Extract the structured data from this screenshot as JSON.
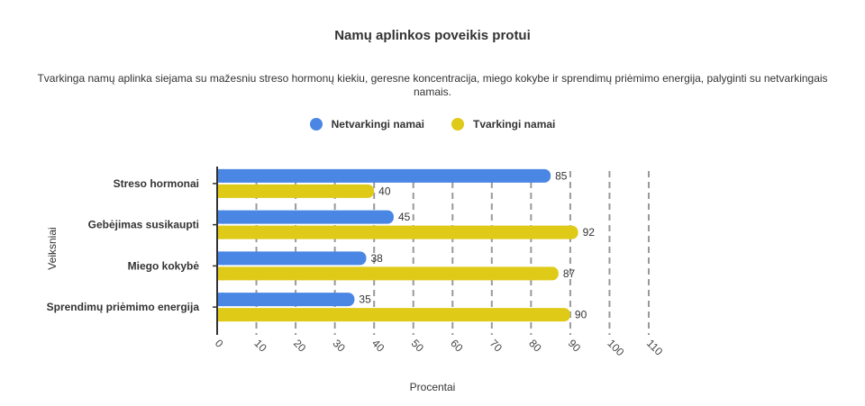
{
  "title": "Namų aplinkos poveikis protui",
  "subtitle": "Tvarkinga namų aplinka siejama su mažesniu streso hormonų kiekiu, geresne koncentracija, miego kokybe ir sprendimų priėmimo energija, palyginti su netvarkingais namais.",
  "chart_data": {
    "type": "bar",
    "orientation": "horizontal",
    "categories": [
      "Streso hormonai",
      "Gebėjimas susikaupti",
      "Miego kokybė",
      "Sprendimų priėmimo energija"
    ],
    "series": [
      {
        "name": "Netvarkingi namai",
        "color": "#4a86e4",
        "values": [
          85,
          45,
          38,
          35
        ]
      },
      {
        "name": "Tvarkingi namai",
        "color": "#dfca18",
        "values": [
          40,
          92,
          87,
          90
        ]
      }
    ],
    "xlabel": "Procentai",
    "ylabel": "Veiksniai",
    "xlim": [
      0,
      110
    ],
    "xticks": [
      "0",
      "10",
      "20",
      "30",
      "40",
      "50",
      "60",
      "70",
      "80",
      "90",
      "100",
      "110"
    ],
    "grid": "vertical dashed",
    "legend": "top-center",
    "data_labels": true
  }
}
